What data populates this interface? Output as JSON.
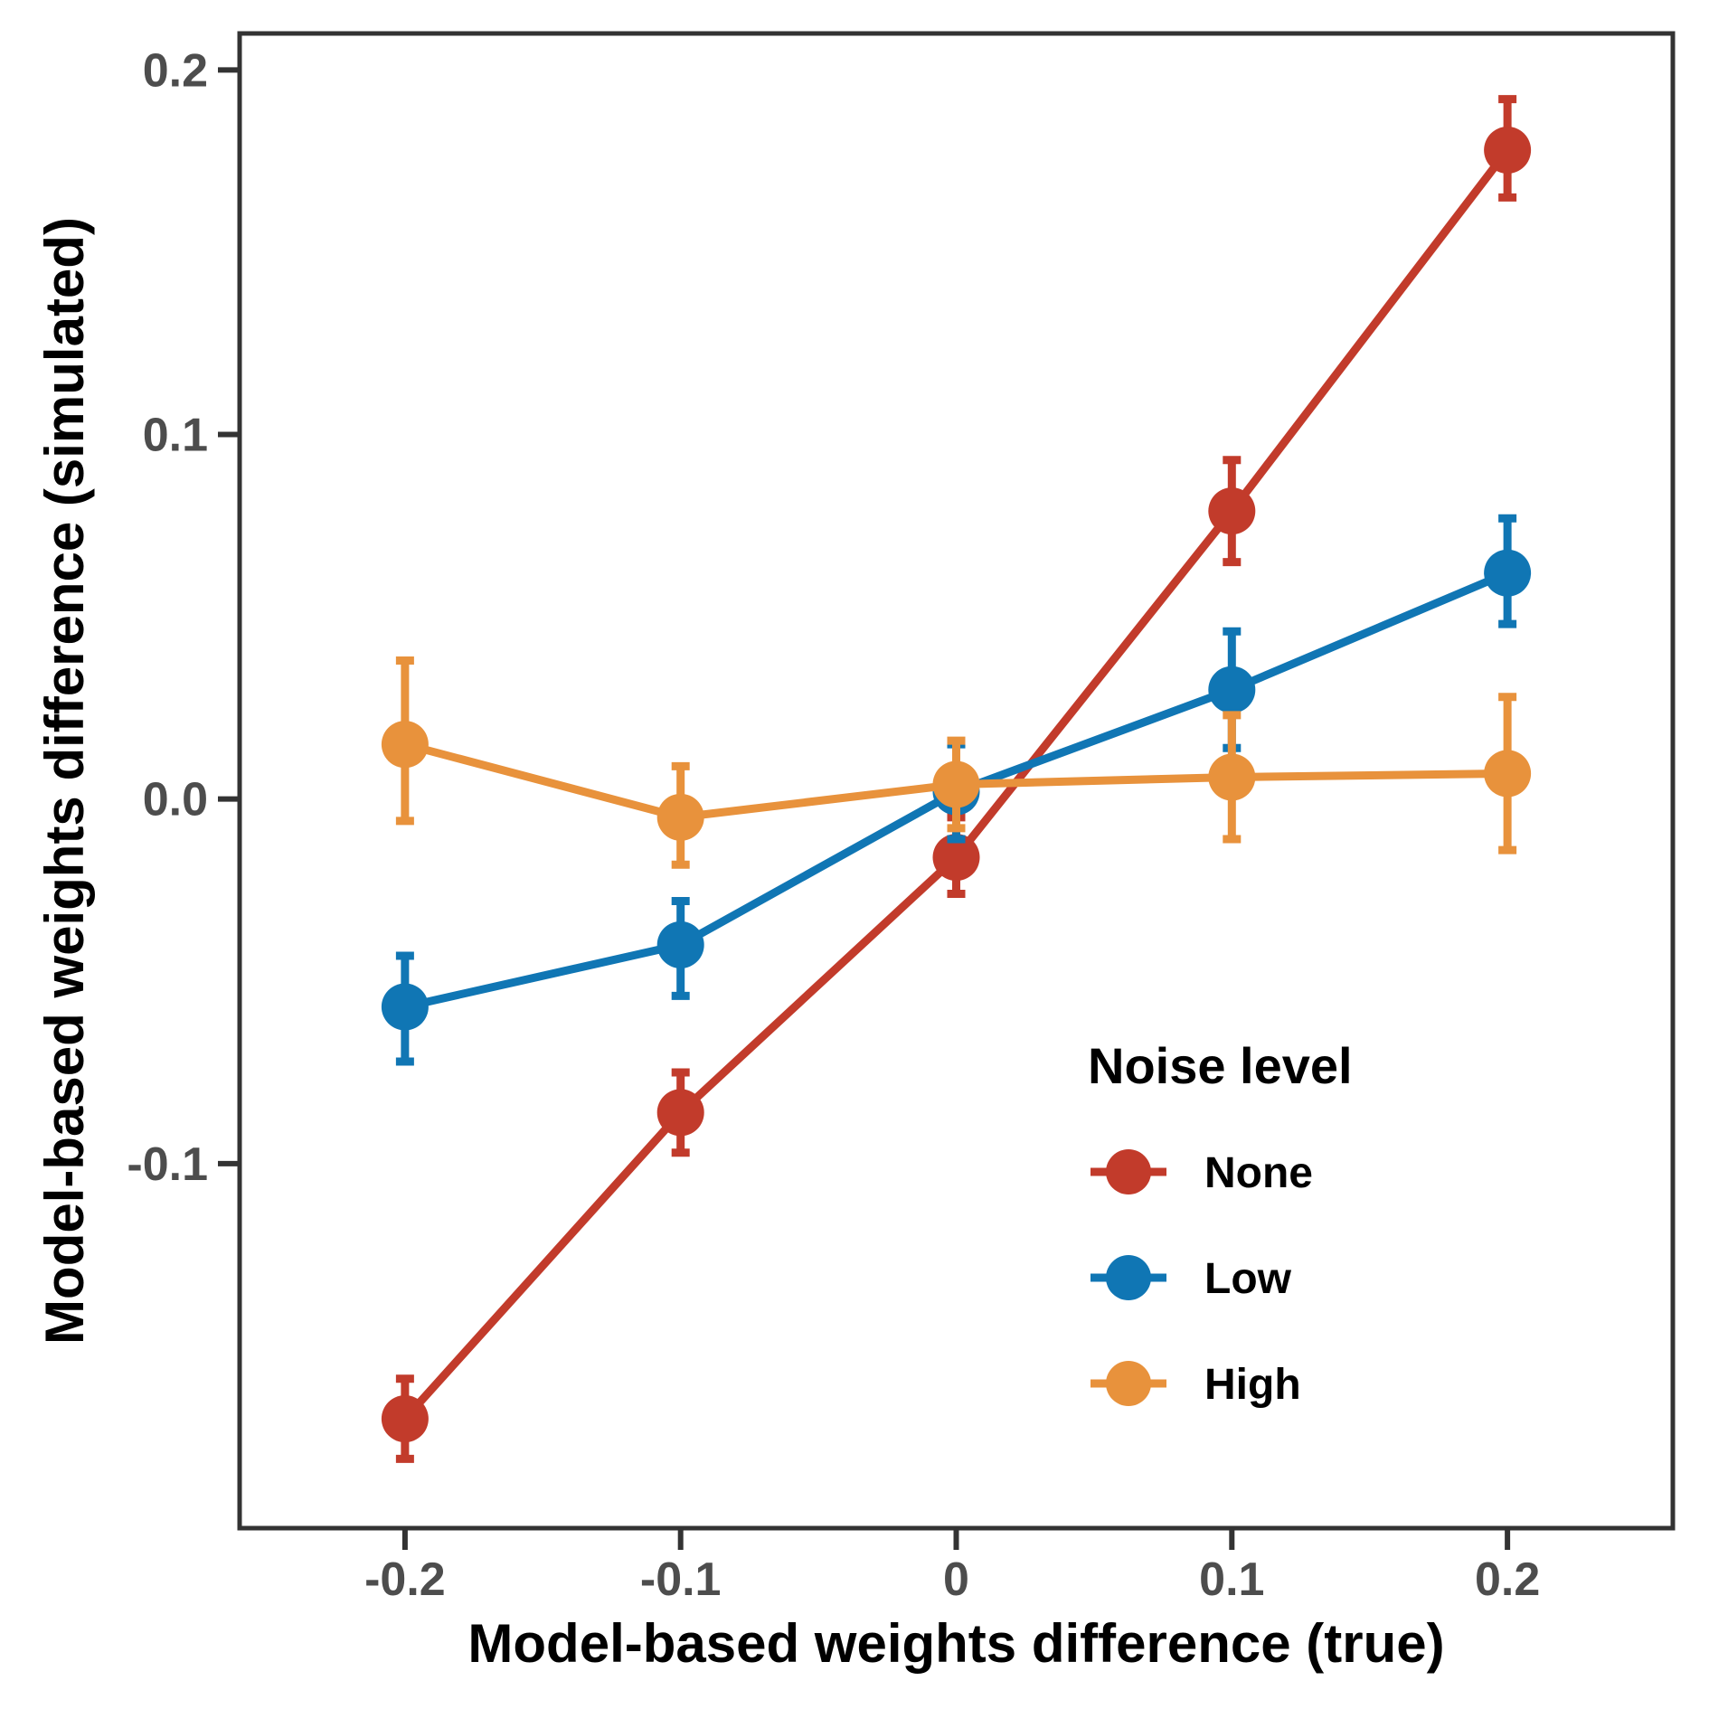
{
  "figure": {
    "background": "#FFFFFF"
  },
  "chart_data": {
    "type": "line",
    "title": "",
    "xlabel": "Model-based weights difference (true)",
    "ylabel": "Model-based weights difference (simulated)",
    "xlim": [
      -0.26,
      0.26
    ],
    "ylim": [
      -0.2,
      0.21
    ],
    "grid": false,
    "x": [
      -0.2,
      -0.1,
      0,
      0.1,
      0.2
    ],
    "xtick_labels": [
      "-0.2",
      "-0.1",
      "0",
      "0.1",
      "0.2"
    ],
    "yticks": [
      0.2,
      0.1,
      0.0,
      -0.1
    ],
    "ytick_labels": [
      "0.2",
      "0.1",
      "0.0",
      "-0.1"
    ],
    "series": [
      {
        "name": "None",
        "color": "#C23B2B",
        "values": [
          -0.17,
          -0.086,
          -0.016,
          0.079,
          0.178
        ],
        "ymin": [
          -0.181,
          -0.097,
          -0.026,
          0.065,
          0.165
        ],
        "ymax": [
          -0.159,
          -0.075,
          -0.005,
          0.093,
          0.192
        ]
      },
      {
        "name": "Low",
        "color": "#1076B4",
        "values": [
          -0.057,
          -0.04,
          0.002,
          0.03,
          0.062
        ],
        "ymin": [
          -0.072,
          -0.054,
          -0.011,
          0.014,
          0.048
        ],
        "ymax": [
          -0.043,
          -0.028,
          0.015,
          0.046,
          0.077
        ]
      },
      {
        "name": "High",
        "color": "#E8923C",
        "values": [
          0.015,
          -0.005,
          0.004,
          0.006,
          0.007
        ],
        "ymin": [
          -0.006,
          -0.018,
          -0.008,
          -0.011,
          -0.014
        ],
        "ymax": [
          0.038,
          0.009,
          0.016,
          0.023,
          0.028
        ]
      }
    ],
    "legend": {
      "title": "Noise level",
      "position": "inside-right-lower",
      "entries": [
        "None",
        "Low",
        "High"
      ]
    },
    "colors": {
      "axis": "#333333",
      "tick_label": "#4D4D4D",
      "title_text": "#000000",
      "panel_background": "#FFFFFF"
    }
  }
}
